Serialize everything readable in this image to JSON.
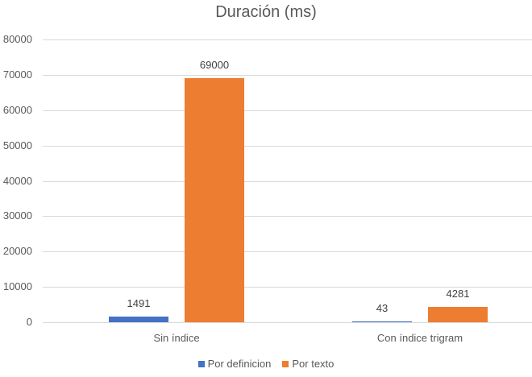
{
  "chart_data": {
    "type": "bar",
    "title": "Duración (ms)",
    "categories": [
      "Sin índice",
      "Con índice trigram"
    ],
    "series": [
      {
        "name": "Por definicion",
        "color": "#4472c4",
        "values": [
          1491,
          43
        ]
      },
      {
        "name": "Por texto",
        "color": "#ed7d31",
        "values": [
          69000,
          4281
        ]
      }
    ],
    "xlabel": "",
    "ylabel": "",
    "ylim": [
      0,
      80000
    ],
    "yticks": [
      "0",
      "10000",
      "20000",
      "30000",
      "40000",
      "50000",
      "60000",
      "70000",
      "80000"
    ],
    "grid": true,
    "legend_position": "bottom",
    "data_labels": true
  }
}
